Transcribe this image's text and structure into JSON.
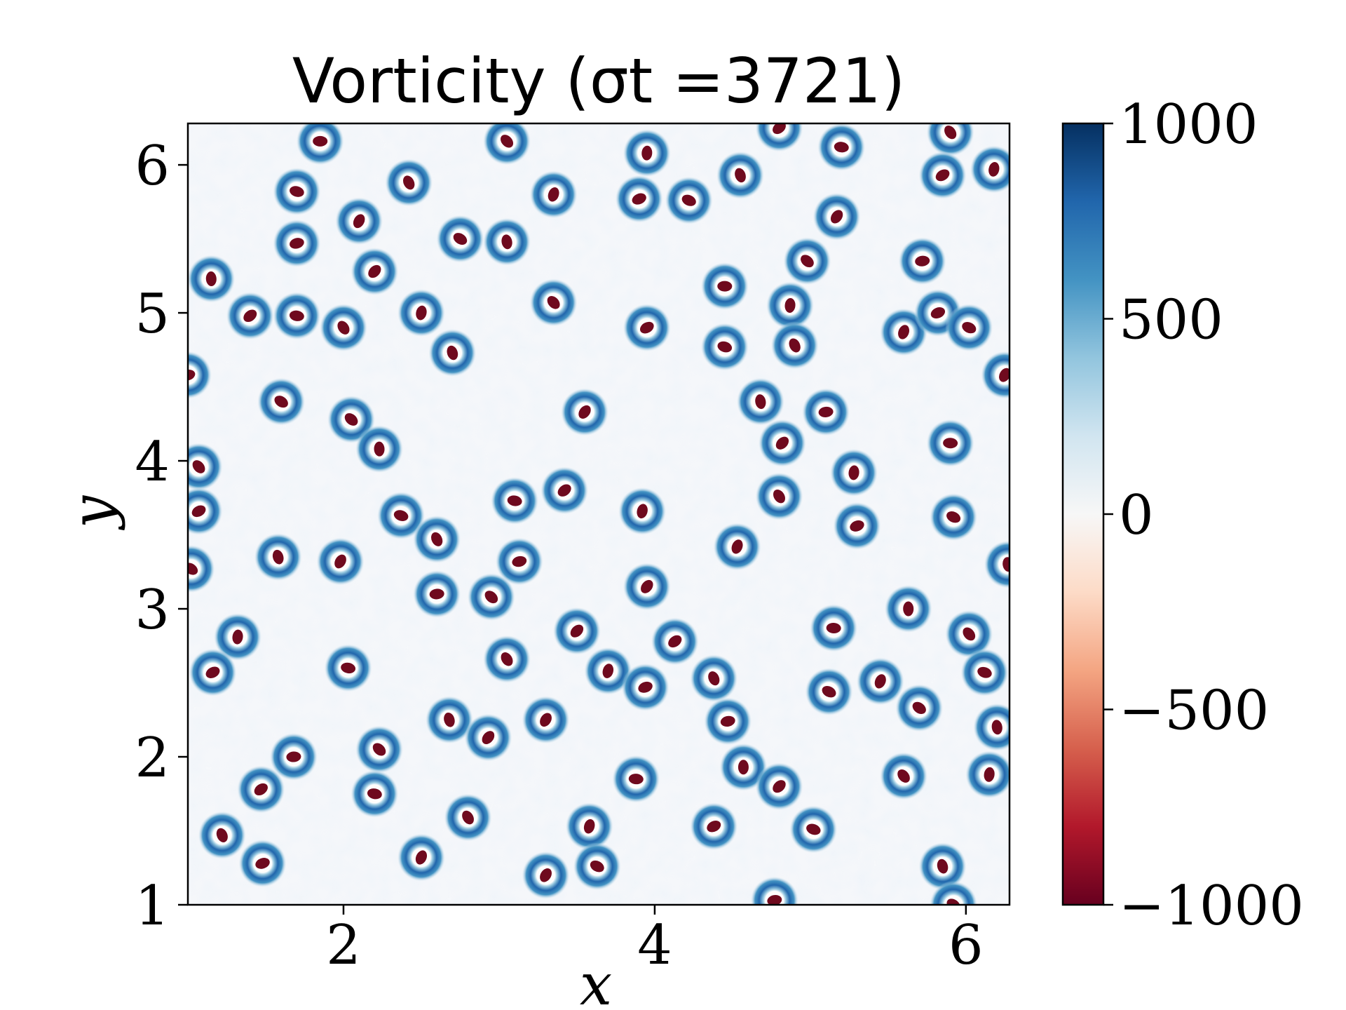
{
  "chart_data": {
    "type": "heatmap",
    "title": "Vorticity (σt =3721)",
    "xlabel": "x",
    "ylabel": "y",
    "xlim": [
      1.0,
      6.28
    ],
    "ylim": [
      1.0,
      6.28
    ],
    "x_ticks": [
      "2",
      "4",
      "6"
    ],
    "x_tick_values": [
      2,
      4,
      6
    ],
    "y_ticks": [
      "1",
      "2",
      "3",
      "4",
      "5",
      "6"
    ],
    "y_tick_values": [
      1,
      2,
      3,
      4,
      5,
      6
    ],
    "colorbar": {
      "colormap": "RdBu",
      "range": [
        -1000,
        1000
      ],
      "ticks": [
        "1000",
        "500",
        "0",
        "−500",
        "−1000"
      ],
      "tick_values": [
        1000,
        500,
        0,
        -500,
        -1000
      ],
      "colors": [
        "#67001f",
        "#b2182b",
        "#d6604d",
        "#f4a582",
        "#fddbc7",
        "#f7f7f7",
        "#d1e5f0",
        "#92c5de",
        "#4393c3",
        "#2166ac",
        "#053061"
      ]
    },
    "vortex_core_value": -1000,
    "vortex_halo_value": 600,
    "vortices": [
      [
        1.85,
        6.16
      ],
      [
        3.05,
        6.16
      ],
      [
        3.95,
        6.08
      ],
      [
        4.8,
        6.25
      ],
      [
        5.2,
        6.12
      ],
      [
        5.9,
        6.22
      ],
      [
        6.18,
        5.97
      ],
      [
        5.85,
        5.93
      ],
      [
        1.7,
        5.82
      ],
      [
        2.42,
        5.88
      ],
      [
        3.35,
        5.8
      ],
      [
        3.9,
        5.77
      ],
      [
        4.22,
        5.76
      ],
      [
        4.55,
        5.93
      ],
      [
        2.1,
        5.62
      ],
      [
        1.7,
        5.47
      ],
      [
        2.75,
        5.5
      ],
      [
        3.05,
        5.48
      ],
      [
        5.17,
        5.65
      ],
      [
        5.72,
        5.35
      ],
      [
        4.98,
        5.35
      ],
      [
        1.15,
        5.23
      ],
      [
        2.2,
        5.28
      ],
      [
        4.45,
        5.18
      ],
      [
        3.35,
        5.07
      ],
      [
        4.87,
        5.05
      ],
      [
        1.4,
        4.98
      ],
      [
        1.7,
        4.98
      ],
      [
        2.0,
        4.9
      ],
      [
        2.5,
        5.0
      ],
      [
        3.95,
        4.9
      ],
      [
        4.45,
        4.77
      ],
      [
        4.9,
        4.78
      ],
      [
        5.6,
        4.87
      ],
      [
        5.82,
        5.0
      ],
      [
        6.02,
        4.9
      ],
      [
        2.7,
        4.73
      ],
      [
        6.25,
        4.58
      ],
      [
        1.0,
        4.58
      ],
      [
        1.6,
        4.4
      ],
      [
        4.68,
        4.4
      ],
      [
        3.55,
        4.33
      ],
      [
        5.1,
        4.33
      ],
      [
        2.05,
        4.28
      ],
      [
        2.23,
        4.08
      ],
      [
        4.82,
        4.12
      ],
      [
        5.9,
        4.12
      ],
      [
        1.07,
        3.96
      ],
      [
        5.28,
        3.92
      ],
      [
        3.42,
        3.8
      ],
      [
        3.1,
        3.73
      ],
      [
        4.8,
        3.76
      ],
      [
        3.92,
        3.66
      ],
      [
        1.07,
        3.66
      ],
      [
        2.37,
        3.63
      ],
      [
        2.6,
        3.47
      ],
      [
        4.53,
        3.42
      ],
      [
        5.3,
        3.56
      ],
      [
        5.92,
        3.62
      ],
      [
        1.58,
        3.35
      ],
      [
        1.98,
        3.32
      ],
      [
        3.13,
        3.32
      ],
      [
        1.02,
        3.27
      ],
      [
        6.27,
        3.3
      ],
      [
        3.95,
        3.15
      ],
      [
        2.6,
        3.1
      ],
      [
        2.95,
        3.08
      ],
      [
        5.63,
        3.0
      ],
      [
        3.5,
        2.85
      ],
      [
        5.15,
        2.87
      ],
      [
        6.02,
        2.83
      ],
      [
        1.32,
        2.81
      ],
      [
        4.13,
        2.78
      ],
      [
        2.03,
        2.6
      ],
      [
        3.05,
        2.66
      ],
      [
        3.7,
        2.58
      ],
      [
        1.16,
        2.57
      ],
      [
        6.12,
        2.57
      ],
      [
        4.38,
        2.53
      ],
      [
        5.45,
        2.51
      ],
      [
        3.94,
        2.47
      ],
      [
        5.12,
        2.44
      ],
      [
        2.68,
        2.25
      ],
      [
        3.3,
        2.25
      ],
      [
        4.47,
        2.24
      ],
      [
        5.7,
        2.33
      ],
      [
        6.2,
        2.2
      ],
      [
        2.93,
        2.13
      ],
      [
        1.68,
        2.0
      ],
      [
        2.23,
        2.05
      ],
      [
        4.57,
        1.93
      ],
      [
        4.8,
        1.8
      ],
      [
        3.88,
        1.85
      ],
      [
        5.6,
        1.87
      ],
      [
        6.15,
        1.88
      ],
      [
        1.47,
        1.78
      ],
      [
        2.2,
        1.75
      ],
      [
        2.8,
        1.59
      ],
      [
        3.58,
        1.53
      ],
      [
        4.38,
        1.53
      ],
      [
        5.02,
        1.51
      ],
      [
        1.22,
        1.47
      ],
      [
        2.5,
        1.32
      ],
      [
        1.48,
        1.28
      ],
      [
        3.63,
        1.26
      ],
      [
        5.85,
        1.26
      ],
      [
        3.3,
        1.2
      ],
      [
        4.77,
        1.03
      ],
      [
        5.92,
        1.0
      ]
    ]
  }
}
